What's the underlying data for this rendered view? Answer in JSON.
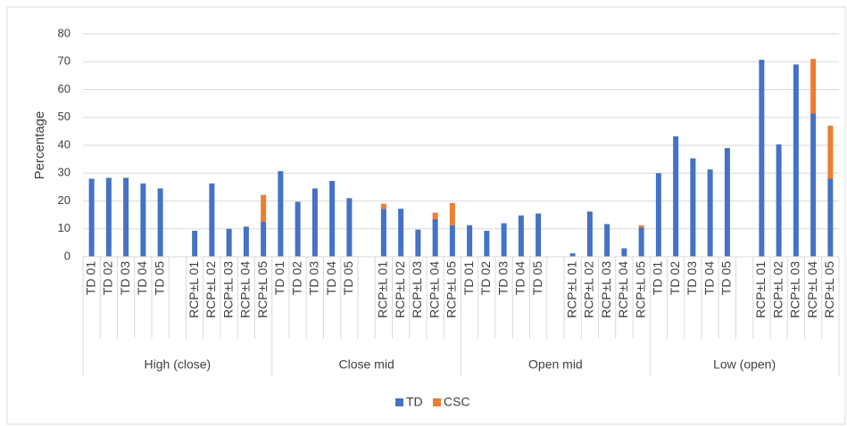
{
  "chart_data": {
    "type": "stacked_bar",
    "y_label": "Percentage",
    "groups": [
      "High (close)",
      "Close mid",
      "Open mid",
      "Low (open)"
    ],
    "categories": [
      "TD 01",
      "TD 02",
      "TD 03",
      "TD 04",
      "TD 05",
      null,
      "RCP±L 01",
      "RCP±L 02",
      "RCP±L 03",
      "RCP±L 04",
      "RCP±L 05",
      "TD 01",
      "TD 02",
      "TD 03",
      "TD 04",
      "TD 05",
      null,
      "RCP±L 01",
      "RCP±L 02",
      "RCP±L 03",
      "RCP±L 04",
      "RCP±L 05",
      "TD 01",
      "TD 02",
      "TD 03",
      "TD 04",
      "TD 05",
      null,
      "RCP±L 01",
      "RCP±L 02",
      "RCP±L 03",
      "RCP±L 04",
      "RCP±L 05",
      "TD 01",
      "TD 02",
      "TD 03",
      "TD 04",
      "TD 05",
      null,
      "RCP±L 01",
      "RCP±L 02",
      "RCP±L 03",
      "RCP±L 04",
      "RCP±L 05"
    ],
    "series": [
      {
        "name": "TD",
        "color": "#4472c4",
        "values": [
          28,
          28.3,
          28.3,
          26.3,
          24.5,
          null,
          9.3,
          26.3,
          10,
          10.8,
          12.5,
          30.7,
          19.7,
          24.5,
          27.2,
          21,
          null,
          17.2,
          17.2,
          9.7,
          13.5,
          11.3,
          11.3,
          9.3,
          12,
          14.8,
          15.5,
          null,
          1.2,
          16.2,
          11.7,
          3,
          10.5,
          30,
          43.2,
          35.3,
          31.3,
          39,
          null,
          70.7,
          40.3,
          69,
          51.5,
          28
        ]
      },
      {
        "name": "CSC",
        "color": "#ed7d31",
        "values": [
          0,
          0,
          0,
          0,
          0,
          null,
          0,
          0,
          0,
          0,
          9.7,
          0,
          0,
          0,
          0,
          0,
          null,
          1.8,
          0,
          0,
          2.3,
          8,
          0,
          0,
          0,
          0,
          0,
          null,
          0,
          0,
          0,
          0,
          0.8,
          0,
          0,
          0,
          0,
          0,
          null,
          0,
          0,
          0,
          19.5,
          19
        ]
      }
    ],
    "ylim": [
      0,
      80
    ],
    "yticks": [
      0,
      10,
      20,
      30,
      40,
      50,
      60,
      70,
      80
    ],
    "grid": true,
    "legend": "bottom"
  }
}
